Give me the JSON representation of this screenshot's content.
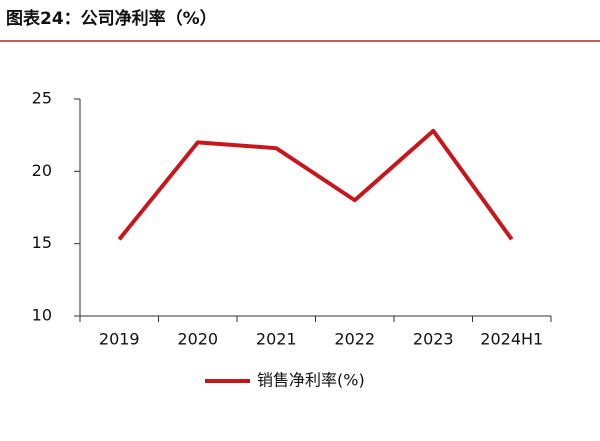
{
  "chart_data": {
    "type": "line",
    "title": "图表24：公司净利率（%）",
    "categories": [
      "2019",
      "2020",
      "2021",
      "2022",
      "2023",
      "2024H1"
    ],
    "series": [
      {
        "name": "销售净利率(%)",
        "color": "#c8161d",
        "values": [
          15.3,
          22.0,
          21.6,
          18.0,
          22.8,
          15.3
        ]
      }
    ],
    "ylim": [
      10,
      25
    ],
    "yticks": [
      10,
      15,
      20,
      25
    ],
    "grid": false,
    "legend": "bottom"
  }
}
